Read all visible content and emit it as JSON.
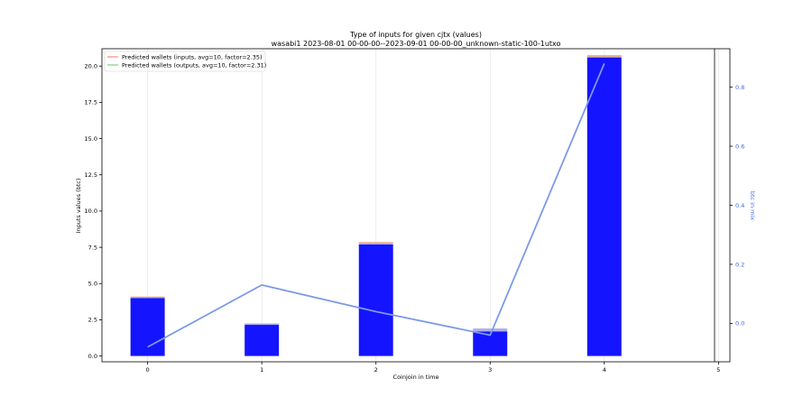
{
  "chart_data": {
    "type": "bar",
    "title": "Type of inputs for given cjtx (values)",
    "subtitle": "wasabi1 2023-08-01 00-00-00--2023-09-01 00-00-00_unknown-static-100-1utxo",
    "xlabel": "Coinjoin in time",
    "ylabel": "Inputs values (btc)",
    "ylabel_right": "btc in mix",
    "categories": [
      "0",
      "1",
      "2",
      "3",
      "4",
      "5"
    ],
    "xlim": [
      -0.4,
      5.1
    ],
    "ylim": [
      -0.4,
      21.2
    ],
    "yticks": [
      0.0,
      2.5,
      5.0,
      7.5,
      10.0,
      12.5,
      15.0,
      17.5,
      20.0
    ],
    "ylim_right": [
      -0.13,
      0.93
    ],
    "yticks_right": [
      0.0,
      0.2,
      0.4,
      0.6,
      0.8
    ],
    "grid": "vertical",
    "legend_placement": "top-left",
    "legend": [
      {
        "label": "Predicted wallets (inputs, avg=10, factor=2.35)",
        "color": "#ff6b6b"
      },
      {
        "label": "Predicted wallets (outputs, avg=10, factor=2.31)",
        "color": "#66c266"
      }
    ],
    "series": [
      {
        "values": [
          4.0,
          2.15,
          7.7,
          1.7,
          20.6,
          0
        ],
        "color": "#1414ff"
      },
      {
        "values": [
          0.05,
          0.1,
          0.05,
          0.2,
          0.05,
          0
        ],
        "color": "#b0b0e8"
      },
      {
        "values": [
          0.05,
          0.0,
          0.1,
          0.0,
          0.1,
          0
        ],
        "color": "#e8a070"
      }
    ],
    "line_series": {
      "x": [
        0,
        1,
        2,
        3,
        4
      ],
      "values": [
        -0.08,
        0.13,
        0.04,
        -0.04,
        0.88
      ],
      "color": "#7b9ae8"
    },
    "bar_width": 0.3
  }
}
